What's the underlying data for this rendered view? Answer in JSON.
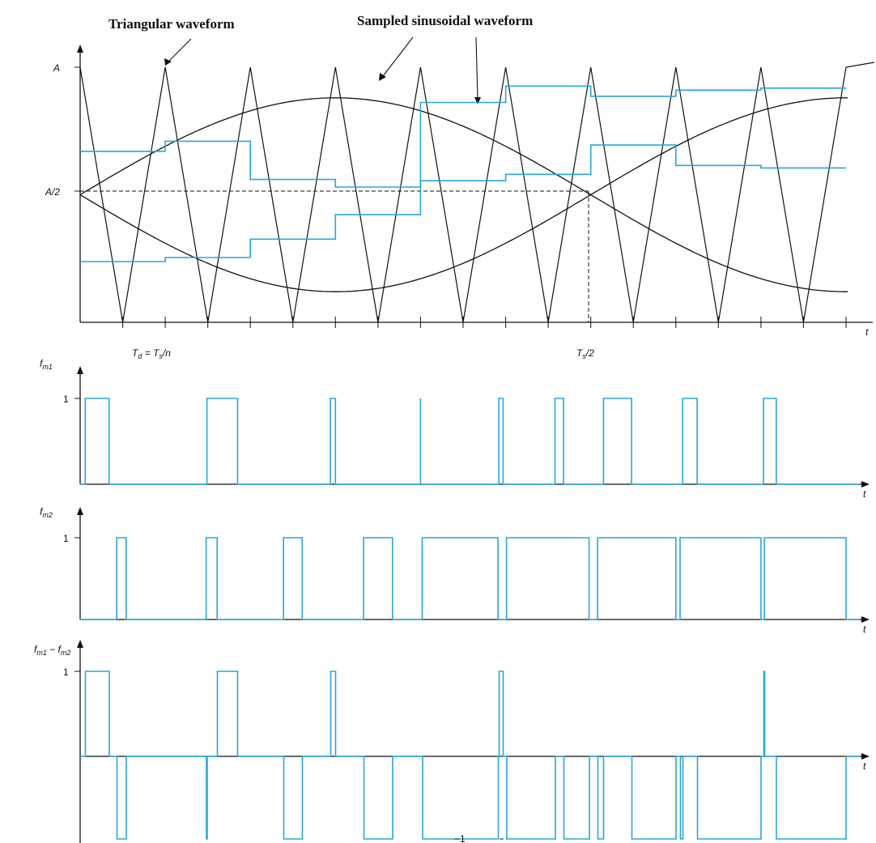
{
  "annotations": {
    "triangular": "Triangular waveform",
    "sampled": "Sampled sinusoidal waveform"
  },
  "top_plot": {
    "y_label_A": "A",
    "y_label_half": "A/2",
    "x_label": "t",
    "td_T": "T",
    "td_d": "d",
    "td_eq": " = T",
    "td_s": "s",
    "td_n": "/n",
    "ts_T": "T",
    "ts_s": "s",
    "ts_2": "/2"
  },
  "fm1_plot": {
    "label_f": "f",
    "label_sub": "m1",
    "tick_one": "1",
    "x_label": "t"
  },
  "fm2_plot": {
    "label_f": "f",
    "label_sub": "m2",
    "tick_one": "1",
    "x_label": "t"
  },
  "diff_plot": {
    "label_f1": "f",
    "label_sub1": "m1",
    "label_minus": " − f",
    "label_sub2": "m2",
    "tick_one": "1",
    "tick_minus_one": "−1",
    "x_label": "t"
  },
  "colors": {
    "pwm_trace": "#2aa7d6",
    "line": "#111111"
  },
  "signals": {
    "sample_periods": 9,
    "sine_A_offset": [
      0.535,
      0.9
    ],
    "sine_B_offset": [
      0.14,
      0.3
    ],
    "sine_amplitude": 0.38,
    "fm1_levels": [
      [
        0.06,
        0.34
      ],
      [
        0.49,
        0.85
      ],
      [
        0.94,
        1.0
      ],
      [
        1.0,
        1.0
      ],
      [
        0.92,
        0.97
      ],
      [
        0.58,
        0.68
      ],
      [
        0.15,
        0.48
      ],
      [
        0.08,
        0.25
      ],
      [
        0.03,
        0.18
      ]
    ],
    "fm2_levels": [
      [
        0.43,
        0.54
      ],
      [
        0.48,
        0.61
      ],
      [
        0.39,
        0.61
      ],
      [
        0.33,
        0.67
      ],
      [
        0.02,
        0.91
      ],
      [
        0.01,
        0.98
      ],
      [
        0.08,
        1.0
      ],
      [
        0.05,
        1.0
      ],
      [
        0.04,
        1.0
      ]
    ]
  }
}
